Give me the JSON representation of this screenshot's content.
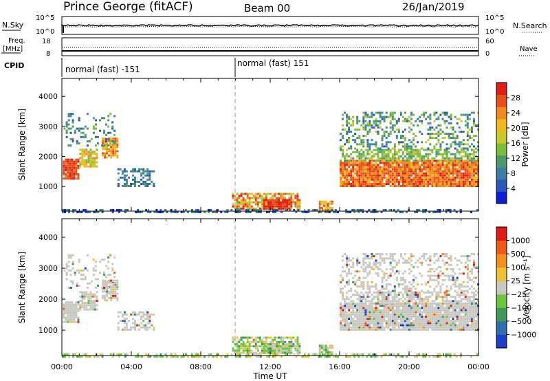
{
  "header": {
    "station": "Prince George (fitACF)",
    "beam": "Beam 00",
    "date": "26/Jan/2019"
  },
  "top_panels": {
    "nsky_label": "N.Sky",
    "nsearch_label": "N.Search",
    "freq_label_1": "Freq.",
    "freq_label_2": "[MHz]",
    "nave_label": "Nave",
    "cpid_label": "CPID",
    "noise_ticks_left": [
      "10^5",
      "10^0"
    ],
    "noise_ticks_right": [
      "10^5",
      "10^0"
    ],
    "freq_ticks": [
      "18",
      "8"
    ],
    "nave_ticks": [
      "60",
      "0"
    ],
    "cpid_segments": [
      {
        "label": "normal (fast) -151",
        "start_hour": 0,
        "end_hour": 10
      },
      {
        "label": "normal (fast) 151",
        "start_hour": 10,
        "end_hour": 24
      }
    ]
  },
  "chart_data": [
    {
      "type": "heatmap",
      "name": "power",
      "ylabel": "Slant Range [km]",
      "xlabel": "Time UT",
      "x_range_hours": [
        0,
        24
      ],
      "ylim_km": [
        180,
        4600
      ],
      "y_ticks": [
        1000,
        2000,
        3000,
        4000
      ],
      "x_tick_labels": [
        "00:00",
        "04:00",
        "08:00",
        "12:00",
        "16:00",
        "20:00",
        "00:00"
      ],
      "colorbar": {
        "label": "Power [dB]",
        "ticks": [
          "4",
          "8",
          "12",
          "16",
          "20",
          "24",
          "28"
        ],
        "colors": [
          "#0a1fd6",
          "#2a57b8",
          "#3b7fa6",
          "#4a9a6a",
          "#7cbc3c",
          "#c9c72a",
          "#f2b81c",
          "#f08a1e",
          "#e8501a",
          "#e01e12"
        ]
      }
    },
    {
      "type": "heatmap",
      "name": "velocity",
      "ylabel": "Slant Range [km]",
      "xlabel": "Time UT",
      "x_range_hours": [
        0,
        24
      ],
      "ylim_km": [
        180,
        4600
      ],
      "y_ticks": [
        1000,
        2000,
        3000,
        4000
      ],
      "x_tick_labels": [
        "00:00",
        "04:00",
        "08:00",
        "12:00",
        "16:00",
        "20:00",
        "00:00"
      ],
      "colorbar": {
        "label": "Velocity [m s⁻¹]",
        "ticks": [
          "1000",
          "500",
          "100",
          "25",
          "−25",
          "−100",
          "−500",
          "−1000"
        ],
        "colors": [
          "#1b3fc8",
          "#2f6fb0",
          "#3f9a5a",
          "#6cc63a",
          "#c8c8c0",
          "#f0c030",
          "#f09020",
          "#f05a18",
          "#e01c10"
        ]
      }
    }
  ]
}
